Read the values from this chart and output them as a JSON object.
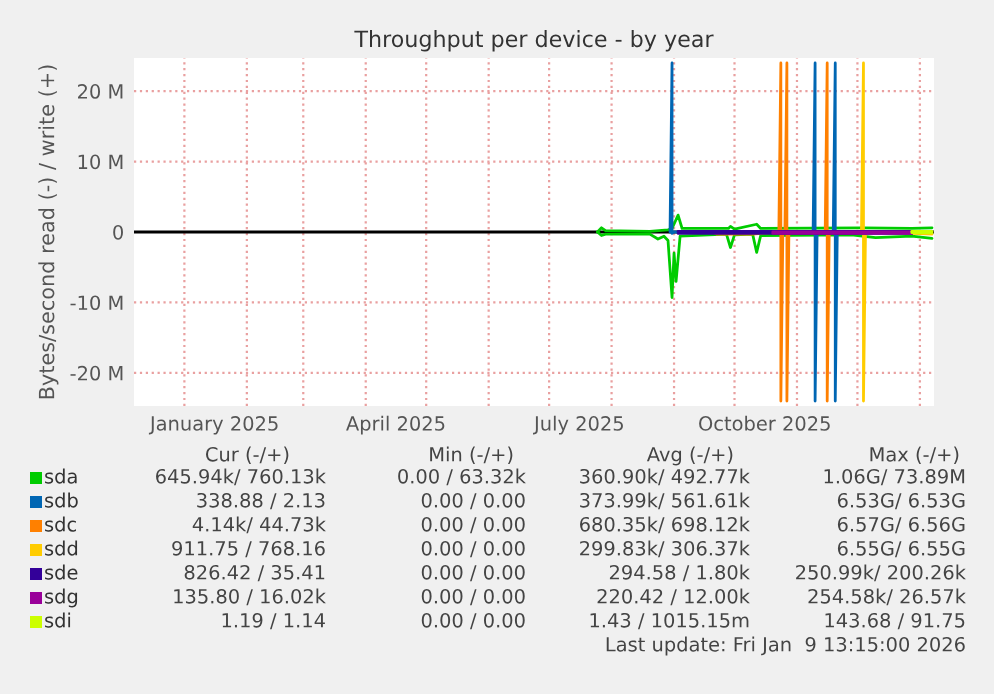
{
  "chart_data": {
    "type": "line",
    "title": "Throughput per device - by year",
    "ylabel": "Bytes/second read (-) / write (+)",
    "xlim": [
      "2024-12-07",
      "2026-01-08"
    ],
    "xticks": [
      {
        "value": "2025-01-01",
        "label": null
      },
      {
        "value": "2025-01-16",
        "label": "January 2025"
      },
      {
        "value": "2025-02-01",
        "label": null
      },
      {
        "value": "2025-03-01",
        "label": null
      },
      {
        "value": "2025-04-01",
        "label": null
      },
      {
        "value": "2025-04-16",
        "label": "April 2025"
      },
      {
        "value": "2025-05-01",
        "label": null
      },
      {
        "value": "2025-06-01",
        "label": null
      },
      {
        "value": "2025-07-01",
        "label": null
      },
      {
        "value": "2025-07-16",
        "label": "July 2025"
      },
      {
        "value": "2025-08-01",
        "label": null
      },
      {
        "value": "2025-09-01",
        "label": null
      },
      {
        "value": "2025-10-01",
        "label": null
      },
      {
        "value": "2025-10-16",
        "label": "October 2025"
      },
      {
        "value": "2025-11-01",
        "label": null
      },
      {
        "value": "2025-12-01",
        "label": null
      },
      {
        "value": "2026-01-01",
        "label": null
      }
    ],
    "ylim": [
      -24700000,
      24700000
    ],
    "yticks": [
      {
        "value": -20000000,
        "label": "-20 M"
      },
      {
        "value": -10000000,
        "label": "-10 M"
      },
      {
        "value": 0,
        "label": "0"
      },
      {
        "value": 10000000,
        "label": "10 M"
      },
      {
        "value": 20000000,
        "label": "20 M"
      }
    ],
    "grid": true,
    "legend": "bottom",
    "marker": "none",
    "line_style": "solid",
    "ref_lines": [
      {
        "axis": "y",
        "value": 0,
        "color": "#000000"
      }
    ],
    "series": [
      {
        "name": "sda",
        "color": "#00cc00",
        "x": [
          "2025-07-25",
          "2025-07-27",
          "2025-07-29",
          "2025-08-20",
          "2025-08-29",
          "2025-08-31",
          "2025-09-03",
          "2025-09-05",
          "2025-09-28",
          "2025-09-29",
          "2025-10-01",
          "2025-10-12",
          "2025-10-14",
          "2025-12-04",
          "2025-12-28",
          "2026-01-07"
        ],
        "values": [
          0,
          600000,
          200000,
          100000,
          300000,
          500000,
          2400000,
          500000,
          500000,
          800000,
          400000,
          1100000,
          500000,
          600000,
          500000,
          600000
        ]
      },
      {
        "color": "#00cc00",
        "x": [
          "2025-07-25",
          "2025-07-27",
          "2025-07-29",
          "2025-08-20",
          "2025-08-24",
          "2025-08-27",
          "2025-08-29",
          "2025-08-31",
          "2025-09-01",
          "2025-09-02",
          "2025-09-04",
          "2025-09-27",
          "2025-09-29",
          "2025-10-01",
          "2025-10-10",
          "2025-10-12",
          "2025-10-14",
          "2025-11-28",
          "2025-12-10",
          "2025-12-28",
          "2026-01-07"
        ],
        "values": [
          0,
          -500000,
          -300000,
          -300000,
          -1000000,
          -600000,
          -1200000,
          -9300000,
          -3000000,
          -7000000,
          -600000,
          -300000,
          -2200000,
          -400000,
          -300000,
          -2900000,
          -500000,
          -400000,
          -800000,
          -600000,
          -900000
        ]
      },
      {
        "name": "sdb",
        "color": "#0066b3",
        "x": [
          "2025-08-30",
          "2025-08-31",
          "2025-08-31",
          "2025-09-01",
          "2025-11-09",
          "2025-11-10",
          "2025-11-10",
          "2025-11-11",
          "2025-11-19",
          "2025-11-20",
          "2025-11-20",
          "2025-11-21"
        ],
        "values": [
          0,
          24000000,
          -200000,
          0,
          0,
          24000000,
          -24000000,
          0,
          0,
          24000000,
          -24000000,
          0
        ]
      },
      {
        "name": "sdc",
        "color": "#ff8000",
        "x": [
          "2025-09-20",
          "2025-09-22",
          "2025-10-10",
          "2025-10-23",
          "2025-10-24",
          "2025-10-24",
          "2025-10-25",
          "2025-10-26",
          "2025-10-27",
          "2025-10-27",
          "2025-10-28",
          "2025-11-15",
          "2025-11-16",
          "2025-11-16",
          "2025-11-17"
        ],
        "values": [
          0,
          -300000,
          -300000,
          0,
          24000000,
          -24000000,
          0,
          0,
          24000000,
          -24000000,
          0,
          0,
          24000000,
          -24000000,
          0
        ]
      },
      {
        "name": "sdd",
        "color": "#ffcc00",
        "x": [
          "2025-12-03",
          "2025-12-04",
          "2025-12-04",
          "2025-12-05",
          "2025-12-28",
          "2026-01-07"
        ],
        "values": [
          0,
          24000000,
          -24000000,
          0,
          -200000,
          -300000
        ]
      },
      {
        "name": "sde",
        "color": "#330099",
        "x": [
          "2025-09-03",
          "2025-12-28"
        ],
        "values": [
          100000,
          100000
        ]
      },
      {
        "color": "#330099",
        "x": [
          "2025-09-03",
          "2025-12-28"
        ],
        "values": [
          -200000,
          -200000
        ]
      },
      {
        "name": "sdg",
        "color": "#990099",
        "x": [
          "2025-10-20",
          "2025-12-28"
        ],
        "values": [
          0,
          0
        ]
      },
      {
        "color": "#990099",
        "x": [
          "2025-10-20",
          "2025-11-20",
          "2025-12-28"
        ],
        "values": [
          -200000,
          -200000,
          -200000
        ]
      },
      {
        "name": "sdi",
        "color": "#ccff00",
        "x": [
          "2025-12-28",
          "2026-01-07"
        ],
        "values": [
          100000,
          100000
        ]
      },
      {
        "color": "#ccff00",
        "x": [
          "2025-12-28",
          "2026-01-07"
        ],
        "values": [
          -100000,
          -100000
        ]
      }
    ],
    "annotations": [
      "Cur (-/+)",
      "Min (-/+)",
      "Avg (-/+)",
      "Max (-/+)",
      "645.94k/ 760.13k",
      "0.00 / 63.32k",
      "360.90k/ 492.77k",
      "1.06G/ 73.89M",
      "338.88 / 2.13",
      "0.00 / 0.00",
      "373.99k/ 561.61k",
      "6.53G/ 6.53G",
      "4.14k/ 44.73k",
      "0.00 / 0.00",
      "680.35k/ 698.12k",
      "6.57G/ 6.56G",
      "911.75 / 768.16",
      "0.00 / 0.00",
      "299.83k/ 306.37k",
      "6.55G/ 6.55G",
      "826.42 / 35.41",
      "0.00 / 0.00",
      "294.58 / 1.80k",
      "250.99k/ 200.26k",
      "135.80 / 16.02k",
      "0.00 / 0.00",
      "220.42 / 12.00k",
      "254.58k/ 26.57k",
      "1.19 / 1.14",
      "0.00 / 0.00",
      "1.43 / 1015.15m",
      "143.68 / 91.75",
      "Last update: Fri Jan  9 13:15:00 2026"
    ]
  }
}
